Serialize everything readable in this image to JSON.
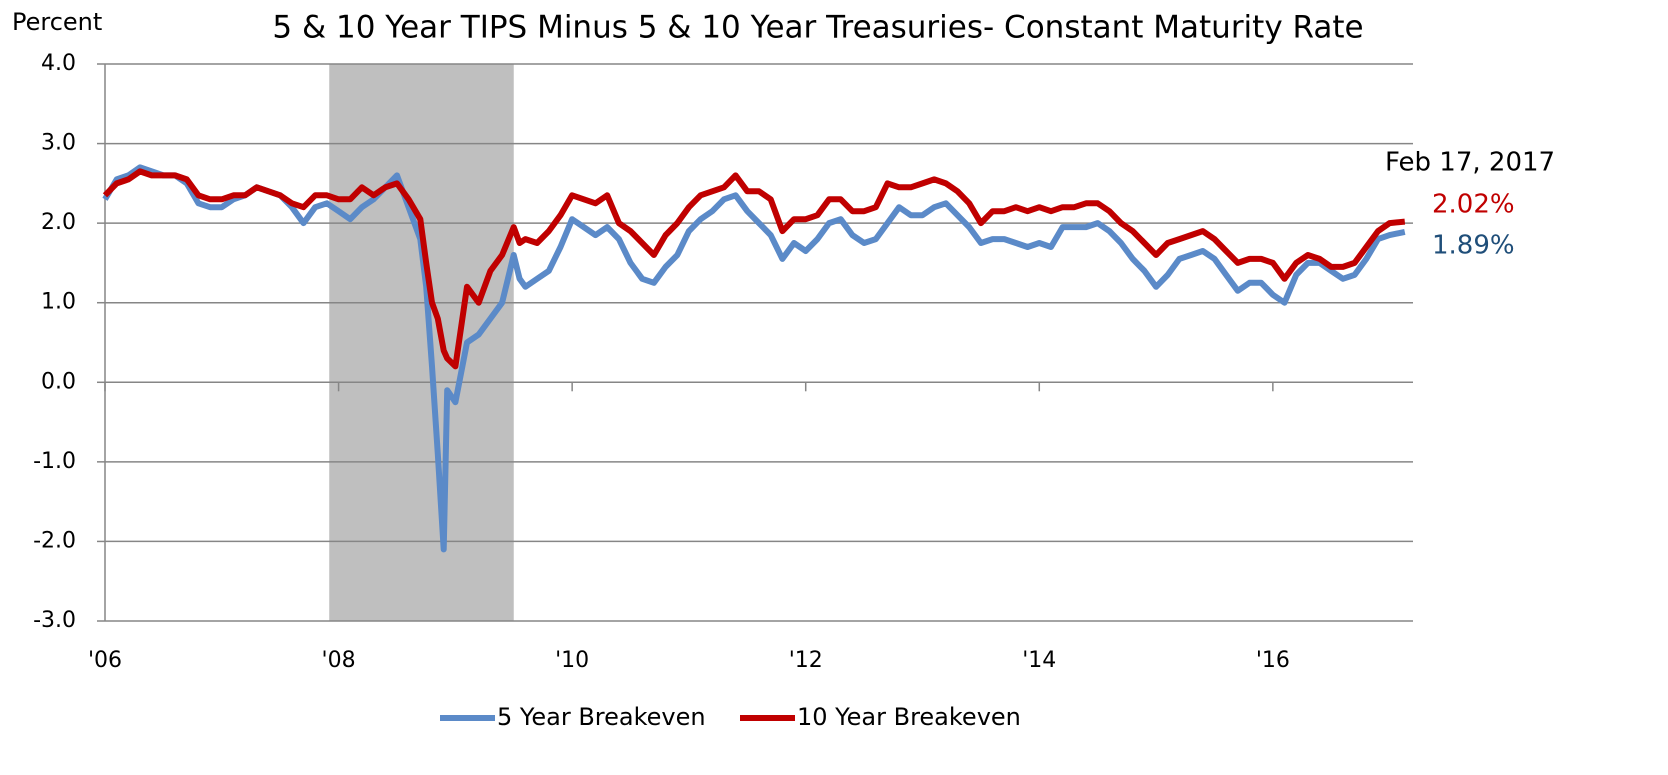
{
  "chart_data": {
    "type": "line",
    "title": "5 & 10 Year TIPS Minus 5 & 10 Year Treasuries- Constant Maturity Rate",
    "y_label": "Percent",
    "x": [
      2006.0,
      2006.1,
      2006.2,
      2006.3,
      2006.4,
      2006.5,
      2006.6,
      2006.7,
      2006.8,
      2006.9,
      2007.0,
      2007.1,
      2007.2,
      2007.3,
      2007.4,
      2007.5,
      2007.6,
      2007.7,
      2007.8,
      2007.9,
      2008.0,
      2008.1,
      2008.2,
      2008.3,
      2008.4,
      2008.5,
      2008.6,
      2008.7,
      2008.75,
      2008.8,
      2008.85,
      2008.9,
      2008.93,
      2009.0,
      2009.1,
      2009.2,
      2009.3,
      2009.4,
      2009.5,
      2009.55,
      2009.6,
      2009.7,
      2009.8,
      2009.9,
      2010.0,
      2010.1,
      2010.2,
      2010.3,
      2010.4,
      2010.5,
      2010.6,
      2010.7,
      2010.8,
      2010.9,
      2011.0,
      2011.1,
      2011.2,
      2011.3,
      2011.4,
      2011.5,
      2011.6,
      2011.7,
      2011.8,
      2011.9,
      2012.0,
      2012.1,
      2012.2,
      2012.3,
      2012.4,
      2012.5,
      2012.6,
      2012.7,
      2012.8,
      2012.9,
      2013.0,
      2013.1,
      2013.2,
      2013.3,
      2013.4,
      2013.5,
      2013.6,
      2013.7,
      2013.8,
      2013.9,
      2014.0,
      2014.1,
      2014.2,
      2014.3,
      2014.4,
      2014.5,
      2014.6,
      2014.7,
      2014.8,
      2014.9,
      2015.0,
      2015.1,
      2015.2,
      2015.3,
      2015.4,
      2015.5,
      2015.6,
      2015.7,
      2015.8,
      2015.9,
      2016.0,
      2016.1,
      2016.2,
      2016.3,
      2016.4,
      2016.5,
      2016.6,
      2016.7,
      2016.8,
      2016.9,
      2017.0,
      2017.13
    ],
    "series": [
      {
        "name": "5 Year Breakeven",
        "color": "#5b8ac8",
        "values": [
          2.3,
          2.55,
          2.6,
          2.7,
          2.65,
          2.6,
          2.6,
          2.5,
          2.25,
          2.2,
          2.2,
          2.3,
          2.35,
          2.45,
          2.4,
          2.35,
          2.2,
          2.0,
          2.2,
          2.25,
          2.15,
          2.05,
          2.2,
          2.3,
          2.45,
          2.6,
          2.2,
          1.8,
          1.2,
          0.2,
          -0.9,
          -2.1,
          -0.1,
          -0.25,
          0.5,
          0.6,
          0.8,
          1.0,
          1.6,
          1.3,
          1.2,
          1.3,
          1.4,
          1.7,
          2.05,
          1.95,
          1.85,
          1.95,
          1.8,
          1.5,
          1.3,
          1.25,
          1.45,
          1.6,
          1.9,
          2.05,
          2.15,
          2.3,
          2.35,
          2.15,
          2.0,
          1.85,
          1.55,
          1.75,
          1.65,
          1.8,
          2.0,
          2.05,
          1.85,
          1.75,
          1.8,
          2.0,
          2.2,
          2.1,
          2.1,
          2.2,
          2.25,
          2.1,
          1.95,
          1.75,
          1.8,
          1.8,
          1.75,
          1.7,
          1.75,
          1.7,
          1.95,
          1.95,
          1.95,
          2.0,
          1.9,
          1.75,
          1.55,
          1.4,
          1.2,
          1.35,
          1.55,
          1.6,
          1.65,
          1.55,
          1.35,
          1.15,
          1.25,
          1.25,
          1.1,
          1.0,
          1.35,
          1.5,
          1.5,
          1.4,
          1.3,
          1.35,
          1.55,
          1.8,
          1.85,
          1.89
        ]
      },
      {
        "name": "10 Year Breakeven",
        "color": "#c00000",
        "values": [
          2.35,
          2.5,
          2.55,
          2.65,
          2.6,
          2.6,
          2.6,
          2.55,
          2.35,
          2.3,
          2.3,
          2.35,
          2.35,
          2.45,
          2.4,
          2.35,
          2.25,
          2.2,
          2.35,
          2.35,
          2.3,
          2.3,
          2.45,
          2.35,
          2.45,
          2.5,
          2.3,
          2.05,
          1.5,
          1.0,
          0.8,
          0.4,
          0.3,
          0.2,
          1.2,
          1.0,
          1.4,
          1.6,
          1.95,
          1.75,
          1.8,
          1.75,
          1.9,
          2.1,
          2.35,
          2.3,
          2.25,
          2.35,
          2.0,
          1.9,
          1.75,
          1.6,
          1.85,
          2.0,
          2.2,
          2.35,
          2.4,
          2.45,
          2.6,
          2.4,
          2.4,
          2.3,
          1.9,
          2.05,
          2.05,
          2.1,
          2.3,
          2.3,
          2.15,
          2.15,
          2.2,
          2.5,
          2.45,
          2.45,
          2.5,
          2.55,
          2.5,
          2.4,
          2.25,
          2.0,
          2.15,
          2.15,
          2.2,
          2.15,
          2.2,
          2.15,
          2.2,
          2.2,
          2.25,
          2.25,
          2.15,
          2.0,
          1.9,
          1.75,
          1.6,
          1.75,
          1.8,
          1.85,
          1.9,
          1.8,
          1.65,
          1.5,
          1.55,
          1.55,
          1.5,
          1.3,
          1.5,
          1.6,
          1.55,
          1.45,
          1.45,
          1.5,
          1.7,
          1.9,
          2.0,
          2.02
        ]
      }
    ],
    "xlim": [
      2006,
      2017.2
    ],
    "xticks": [
      {
        "value": 2006,
        "label": "'06"
      },
      {
        "value": 2008,
        "label": "'08"
      },
      {
        "value": 2010,
        "label": "'10"
      },
      {
        "value": 2012,
        "label": "'12"
      },
      {
        "value": 2014,
        "label": "'14"
      },
      {
        "value": 2016,
        "label": "'16"
      }
    ],
    "ylim": [
      -3,
      4
    ],
    "yticks": [
      {
        "value": -3,
        "label": "-3.0"
      },
      {
        "value": -2,
        "label": "-2.0"
      },
      {
        "value": -1,
        "label": "-1.0"
      },
      {
        "value": 0,
        "label": "0.0"
      },
      {
        "value": 1,
        "label": "1.0"
      },
      {
        "value": 2,
        "label": "2.0"
      },
      {
        "value": 3,
        "label": "3.0"
      },
      {
        "value": 4,
        "label": "4.0"
      }
    ],
    "grid": true,
    "shaded_regions": [
      {
        "start": 2007.92,
        "end": 2009.5,
        "color": "#bfbfbf"
      }
    ],
    "annotations": [
      {
        "text": "Feb 17, 2017",
        "color": "#000000"
      },
      {
        "text": "2.02%",
        "color": "#c00000"
      },
      {
        "text": "1.89%",
        "color": "#1f4e79"
      }
    ],
    "legend": "bottom"
  }
}
